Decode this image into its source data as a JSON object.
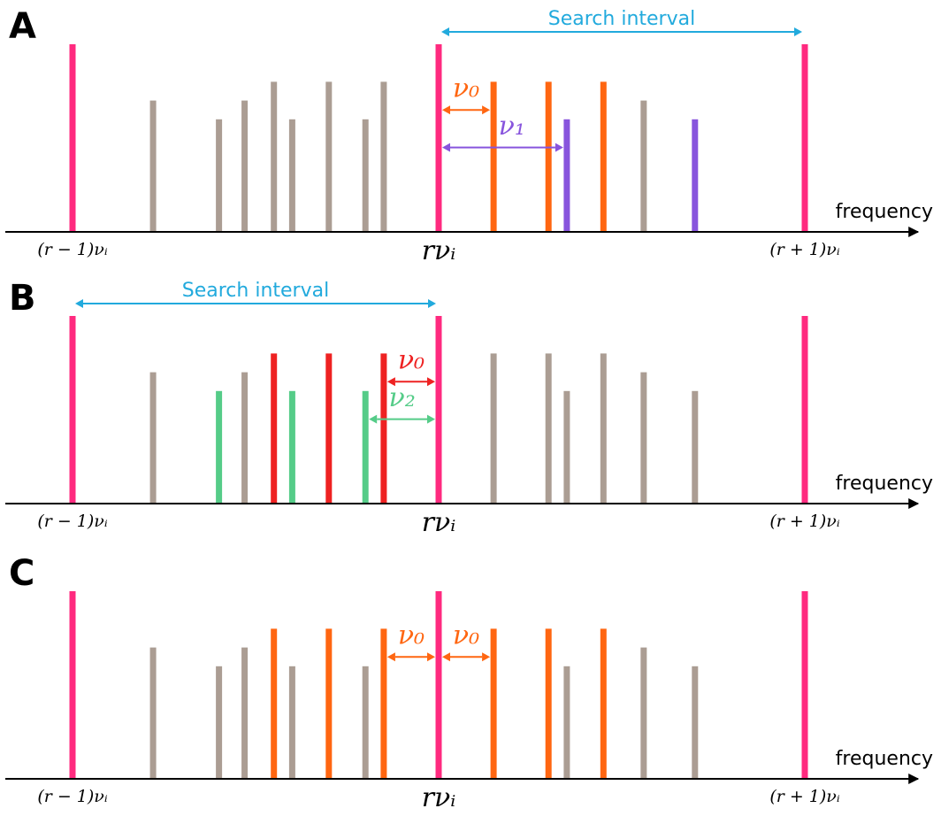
{
  "colors": {
    "harmonic": "#ff2a7f",
    "gray": "#ab9d93",
    "orange": "#ff6611",
    "purple": "#8855dd",
    "red": "#ee2222",
    "green": "#55cc88",
    "interval": "#22aadd",
    "axis": "#000000"
  },
  "panels": [
    {
      "id": "A",
      "letter": "A",
      "axis_label": "frequency",
      "ticks": {
        "left": "(r − 1)νᵢ",
        "center": "rνᵢ",
        "right": "(r + 1)νᵢ"
      },
      "interval": {
        "label": "Search interval",
        "from": 0,
        "to": 1
      },
      "lines": [
        {
          "x": -1,
          "h": 1.0,
          "color": "harmonic"
        },
        {
          "x": 0,
          "h": 1.0,
          "color": "harmonic"
        },
        {
          "x": 1,
          "h": 1.0,
          "color": "harmonic"
        },
        {
          "x": -0.78,
          "h": 0.7,
          "color": "gray"
        },
        {
          "x": -0.6,
          "h": 0.6,
          "color": "gray"
        },
        {
          "x": -0.53,
          "h": 0.7,
          "color": "gray"
        },
        {
          "x": -0.45,
          "h": 0.8,
          "color": "gray"
        },
        {
          "x": -0.4,
          "h": 0.6,
          "color": "gray"
        },
        {
          "x": -0.3,
          "h": 0.8,
          "color": "gray"
        },
        {
          "x": -0.2,
          "h": 0.6,
          "color": "gray"
        },
        {
          "x": -0.15,
          "h": 0.8,
          "color": "gray"
        },
        {
          "x": 0.15,
          "h": 0.8,
          "color": "orange"
        },
        {
          "x": 0.3,
          "h": 0.8,
          "color": "orange"
        },
        {
          "x": 0.35,
          "h": 0.6,
          "color": "purple"
        },
        {
          "x": 0.45,
          "h": 0.8,
          "color": "orange"
        },
        {
          "x": 0.56,
          "h": 0.7,
          "color": "gray"
        },
        {
          "x": 0.7,
          "h": 0.6,
          "color": "purple"
        }
      ],
      "offsets": [
        {
          "label": "ν₀",
          "from": 0,
          "to": 0.15,
          "level": 0.65,
          "color": "orange",
          "label_x": 0.075,
          "label_level": 0.72
        },
        {
          "label": "ν₁",
          "from": 0,
          "to": 0.35,
          "level": 0.45,
          "color": "purple",
          "label_x": 0.2,
          "label_level": 0.52
        }
      ]
    },
    {
      "id": "B",
      "letter": "B",
      "axis_label": "frequency",
      "ticks": {
        "left": "(r − 1)νᵢ",
        "center": "rνᵢ",
        "right": "(r + 1)νᵢ"
      },
      "interval": {
        "label": "Search interval",
        "from": -1,
        "to": 0
      },
      "lines": [
        {
          "x": -1,
          "h": 1.0,
          "color": "harmonic"
        },
        {
          "x": 0,
          "h": 1.0,
          "color": "harmonic"
        },
        {
          "x": 1,
          "h": 1.0,
          "color": "harmonic"
        },
        {
          "x": -0.78,
          "h": 0.7,
          "color": "gray"
        },
        {
          "x": -0.6,
          "h": 0.6,
          "color": "green"
        },
        {
          "x": -0.53,
          "h": 0.7,
          "color": "gray"
        },
        {
          "x": -0.45,
          "h": 0.8,
          "color": "red"
        },
        {
          "x": -0.4,
          "h": 0.6,
          "color": "green"
        },
        {
          "x": -0.3,
          "h": 0.8,
          "color": "red"
        },
        {
          "x": -0.2,
          "h": 0.6,
          "color": "green"
        },
        {
          "x": -0.15,
          "h": 0.8,
          "color": "red"
        },
        {
          "x": 0.15,
          "h": 0.8,
          "color": "gray"
        },
        {
          "x": 0.3,
          "h": 0.8,
          "color": "gray"
        },
        {
          "x": 0.35,
          "h": 0.6,
          "color": "gray"
        },
        {
          "x": 0.45,
          "h": 0.8,
          "color": "gray"
        },
        {
          "x": 0.56,
          "h": 0.7,
          "color": "gray"
        },
        {
          "x": 0.7,
          "h": 0.6,
          "color": "gray"
        }
      ],
      "offsets": [
        {
          "label": "ν₀",
          "from": -0.15,
          "to": 0,
          "level": 0.65,
          "color": "red",
          "label_x": -0.075,
          "label_level": 0.72
        },
        {
          "label": "ν₂",
          "from": -0.2,
          "to": 0,
          "level": 0.45,
          "color": "green",
          "label_x": -0.1,
          "label_level": 0.52
        }
      ]
    },
    {
      "id": "C",
      "letter": "C",
      "axis_label": "frequency",
      "ticks": {
        "left": "(r − 1)νᵢ",
        "center": "rνᵢ",
        "right": "(r + 1)νᵢ"
      },
      "interval": null,
      "lines": [
        {
          "x": -1,
          "h": 1.0,
          "color": "harmonic"
        },
        {
          "x": 0,
          "h": 1.0,
          "color": "harmonic"
        },
        {
          "x": 1,
          "h": 1.0,
          "color": "harmonic"
        },
        {
          "x": -0.78,
          "h": 0.7,
          "color": "gray"
        },
        {
          "x": -0.6,
          "h": 0.6,
          "color": "gray"
        },
        {
          "x": -0.53,
          "h": 0.7,
          "color": "gray"
        },
        {
          "x": -0.45,
          "h": 0.8,
          "color": "orange"
        },
        {
          "x": -0.4,
          "h": 0.6,
          "color": "gray"
        },
        {
          "x": -0.3,
          "h": 0.8,
          "color": "orange"
        },
        {
          "x": -0.2,
          "h": 0.6,
          "color": "gray"
        },
        {
          "x": -0.15,
          "h": 0.8,
          "color": "orange"
        },
        {
          "x": 0.15,
          "h": 0.8,
          "color": "orange"
        },
        {
          "x": 0.3,
          "h": 0.8,
          "color": "orange"
        },
        {
          "x": 0.35,
          "h": 0.6,
          "color": "gray"
        },
        {
          "x": 0.45,
          "h": 0.8,
          "color": "orange"
        },
        {
          "x": 0.56,
          "h": 0.7,
          "color": "gray"
        },
        {
          "x": 0.7,
          "h": 0.6,
          "color": "gray"
        }
      ],
      "offsets": [
        {
          "label": "ν₀",
          "from": -0.15,
          "to": 0,
          "level": 0.65,
          "color": "orange",
          "label_x": -0.075,
          "label_level": 0.72
        },
        {
          "label": "ν₀",
          "from": 0,
          "to": 0.15,
          "level": 0.65,
          "color": "orange",
          "label_x": 0.075,
          "label_level": 0.72
        }
      ]
    }
  ]
}
